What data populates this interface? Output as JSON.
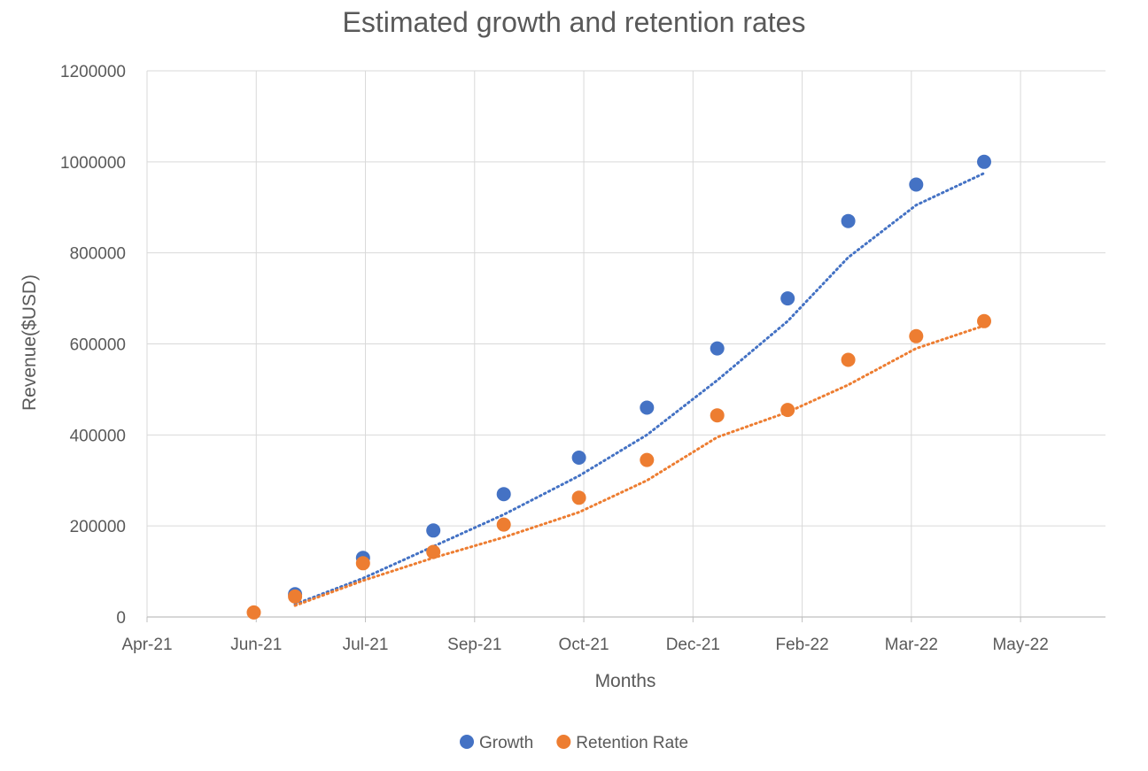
{
  "chart_data": {
    "type": "scatter",
    "title": "Estimated growth and retention rates",
    "xlabel": "Months",
    "ylabel": "Revenue($USD)",
    "ylim": [
      0,
      1200000
    ],
    "yticks": [
      "0",
      "200000",
      "400000",
      "600000",
      "800000",
      "1000000",
      "1200000"
    ],
    "xlim": [
      "2021-04-01",
      "2022-05-01"
    ],
    "xticks": [
      {
        "date": "2021-04-01",
        "label": "Apr-21"
      },
      {
        "date": "2021-05-16",
        "label": "Jun-21"
      },
      {
        "date": "2021-06-30",
        "label": "Jul-21"
      },
      {
        "date": "2021-08-14",
        "label": "Sep-21"
      },
      {
        "date": "2021-09-28",
        "label": "Oct-21"
      },
      {
        "date": "2021-11-12",
        "label": "Dec-21"
      },
      {
        "date": "2021-12-27",
        "label": "Feb-22"
      },
      {
        "date": "2022-02-10",
        "label": "Mar-22"
      },
      {
        "date": "2022-03-27",
        "label": "May-22"
      }
    ],
    "grid": true,
    "legend": "bottom",
    "series": [
      {
        "name": "Growth",
        "color": "#4472C4",
        "trendline": "dotted",
        "points": [
          {
            "x": "2021-06-01",
            "y": 50000
          },
          {
            "x": "2021-06-29",
            "y": 130000
          },
          {
            "x": "2021-07-28",
            "y": 190000
          },
          {
            "x": "2021-08-26",
            "y": 270000
          },
          {
            "x": "2021-09-26",
            "y": 350000
          },
          {
            "x": "2021-10-24",
            "y": 460000
          },
          {
            "x": "2021-11-22",
            "y": 590000
          },
          {
            "x": "2021-12-21",
            "y": 700000
          },
          {
            "x": "2022-01-15",
            "y": 870000
          },
          {
            "x": "2022-02-12",
            "y": 950000
          },
          {
            "x": "2022-03-12",
            "y": 1000000
          }
        ],
        "trend": [
          {
            "x": "2021-06-01",
            "y": 28000
          },
          {
            "x": "2021-06-29",
            "y": 85000
          },
          {
            "x": "2021-07-28",
            "y": 155000
          },
          {
            "x": "2021-08-26",
            "y": 225000
          },
          {
            "x": "2021-09-26",
            "y": 310000
          },
          {
            "x": "2021-10-24",
            "y": 400000
          },
          {
            "x": "2021-11-22",
            "y": 520000
          },
          {
            "x": "2021-12-21",
            "y": 650000
          },
          {
            "x": "2022-01-15",
            "y": 790000
          },
          {
            "x": "2022-02-12",
            "y": 905000
          },
          {
            "x": "2022-03-12",
            "y": 975000
          }
        ]
      },
      {
        "name": "Retention Rate",
        "color": "#ED7D31",
        "trendline": "dotted",
        "points": [
          {
            "x": "2021-05-15",
            "y": 10000
          },
          {
            "x": "2021-06-01",
            "y": 45000
          },
          {
            "x": "2021-06-29",
            "y": 118000
          },
          {
            "x": "2021-07-28",
            "y": 143000
          },
          {
            "x": "2021-08-26",
            "y": 203000
          },
          {
            "x": "2021-09-26",
            "y": 262000
          },
          {
            "x": "2021-10-24",
            "y": 345000
          },
          {
            "x": "2021-11-22",
            "y": 443000
          },
          {
            "x": "2021-12-21",
            "y": 455000
          },
          {
            "x": "2022-01-15",
            "y": 565000
          },
          {
            "x": "2022-02-12",
            "y": 617000
          },
          {
            "x": "2022-03-12",
            "y": 650000
          }
        ],
        "trend": [
          {
            "x": "2021-06-01",
            "y": 25000
          },
          {
            "x": "2021-06-29",
            "y": 80000
          },
          {
            "x": "2021-07-28",
            "y": 130000
          },
          {
            "x": "2021-08-26",
            "y": 175000
          },
          {
            "x": "2021-09-26",
            "y": 230000
          },
          {
            "x": "2021-10-24",
            "y": 300000
          },
          {
            "x": "2021-11-22",
            "y": 395000
          },
          {
            "x": "2021-12-21",
            "y": 450000
          },
          {
            "x": "2022-01-15",
            "y": 510000
          },
          {
            "x": "2022-02-12",
            "y": 590000
          },
          {
            "x": "2022-03-12",
            "y": 640000
          }
        ]
      }
    ]
  }
}
